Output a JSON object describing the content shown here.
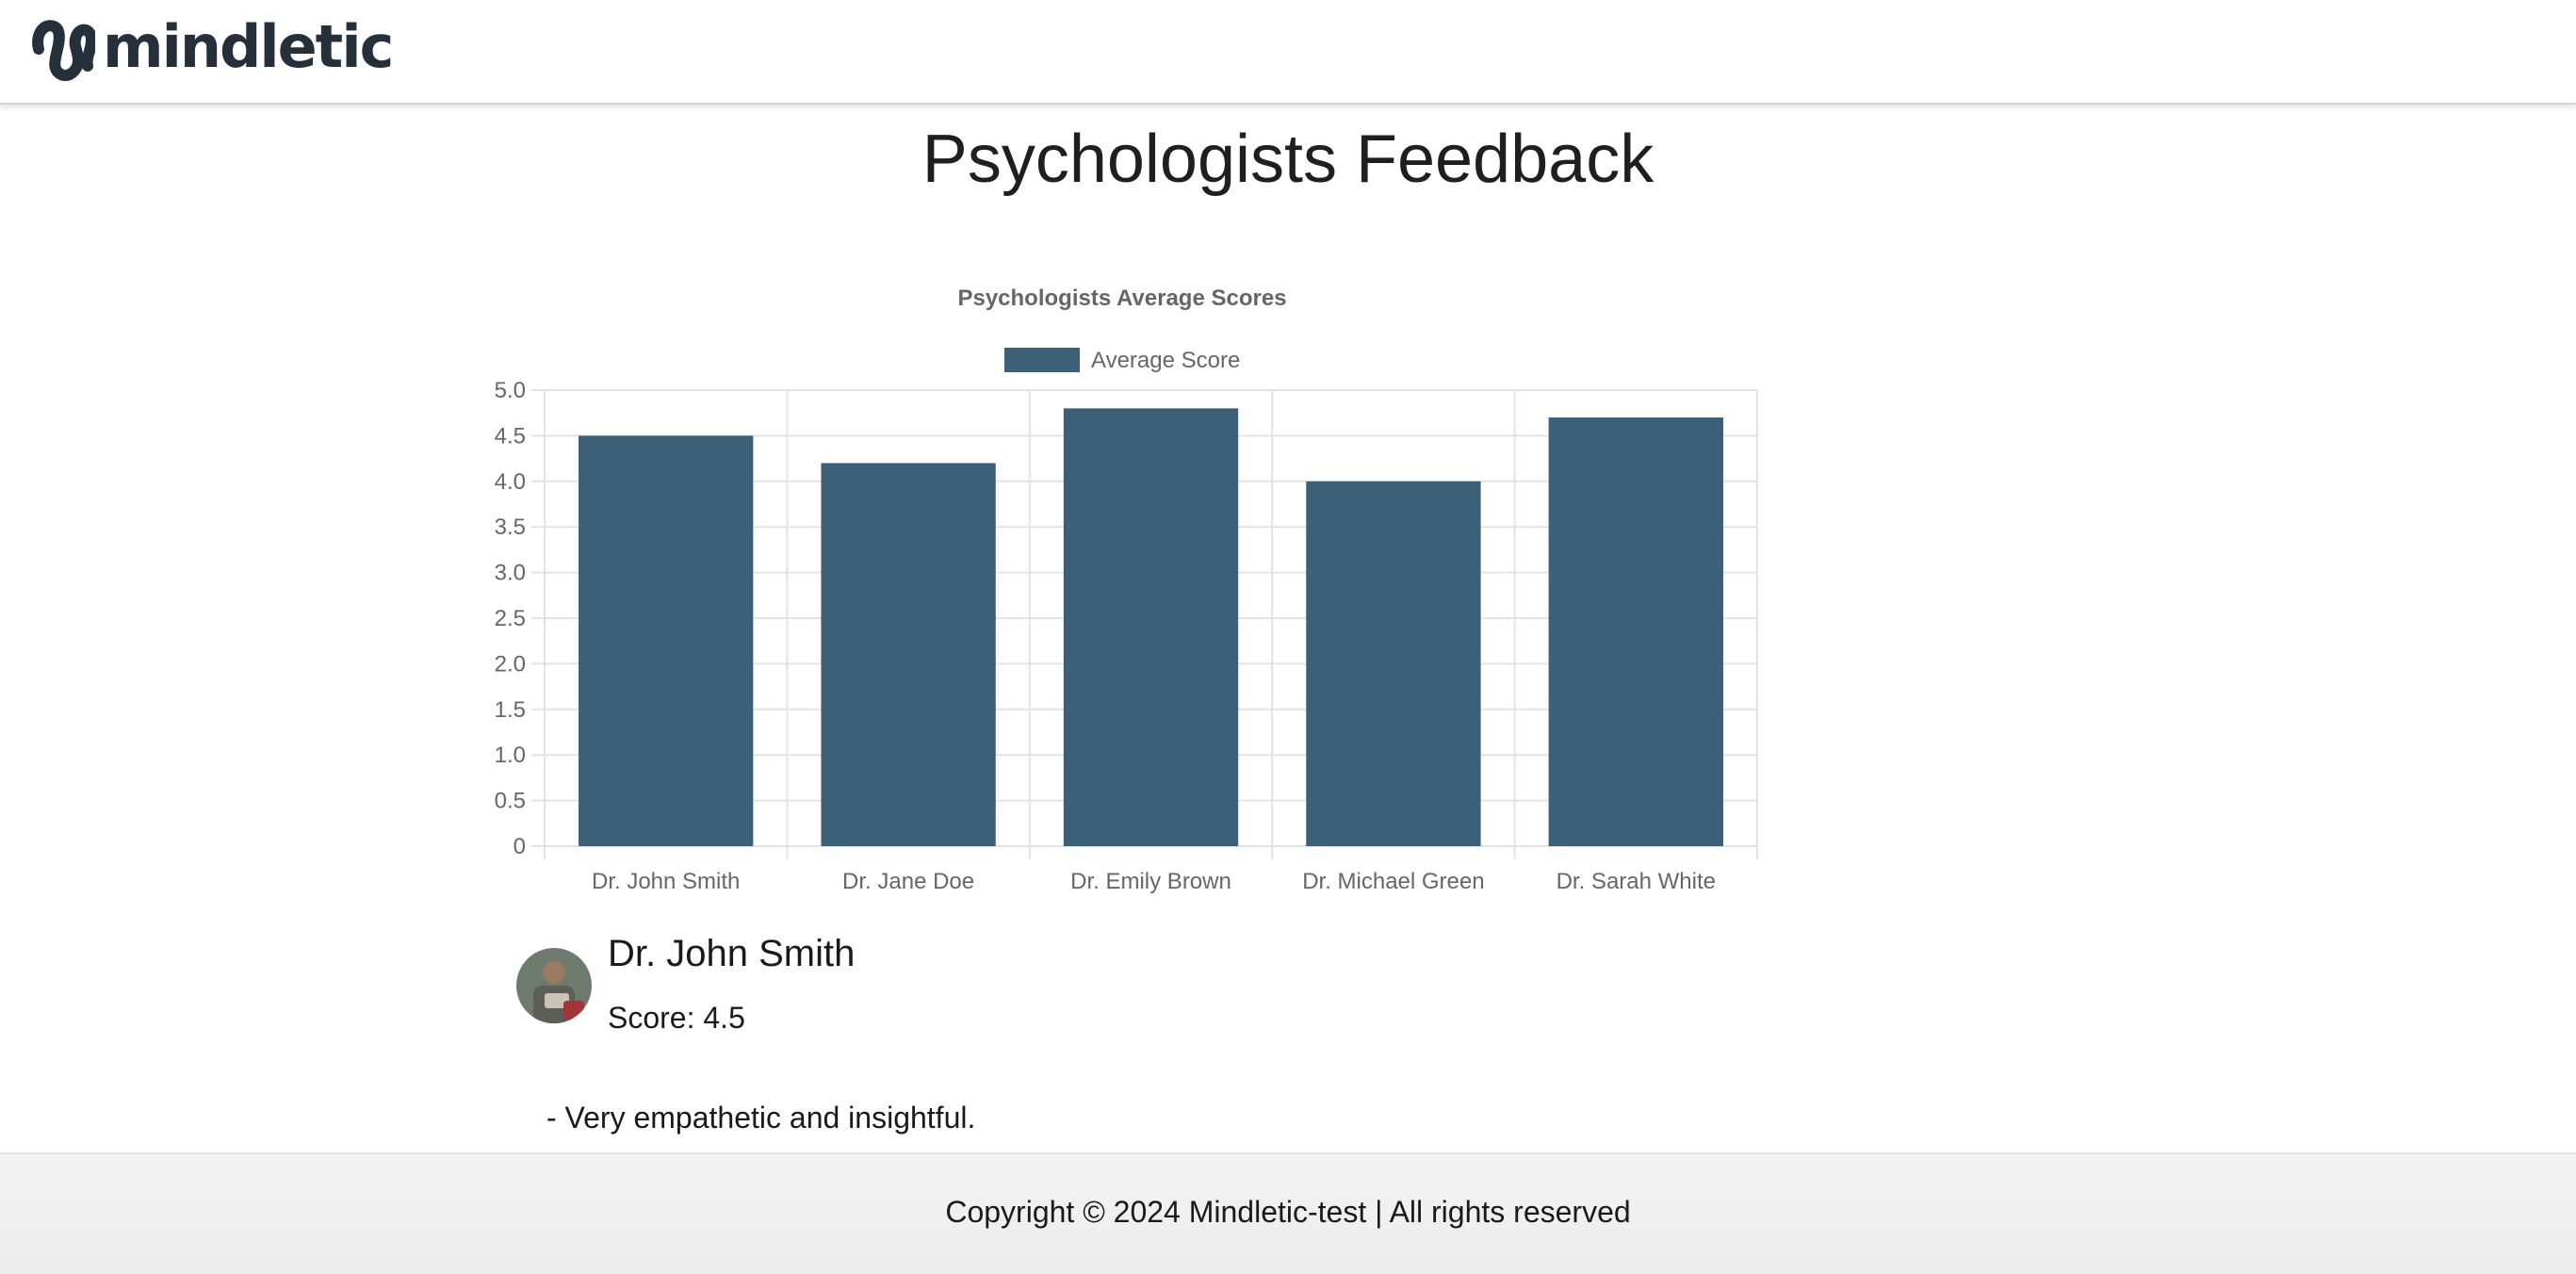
{
  "header": {
    "logo_text": "mindletic"
  },
  "page": {
    "title": "Psychologists Feedback"
  },
  "chart_data": {
    "type": "bar",
    "title": "Psychologists Average Scores",
    "categories": [
      "Dr. John Smith",
      "Dr. Jane Doe",
      "Dr. Emily Brown",
      "Dr. Michael Green",
      "Dr. Sarah White"
    ],
    "series": [
      {
        "name": "Average Score",
        "values": [
          4.5,
          4.2,
          4.8,
          4.0,
          4.7
        ],
        "color": "#3d6079"
      }
    ],
    "ylim": [
      0,
      5
    ],
    "yticks": [
      "0",
      "0.5",
      "1.0",
      "1.5",
      "2.0",
      "2.5",
      "3.0",
      "3.5",
      "4.0",
      "4.5",
      "5.0"
    ],
    "grid": true,
    "legend": "top-center"
  },
  "psychologist": {
    "name": "Dr. John Smith",
    "score": "Score: 4.5",
    "feedback": "- Very empathetic and insightful."
  },
  "footer": {
    "copyright": "Copyright © 2024 Mindletic-test | All rights reserved"
  },
  "colors": {
    "bar": "#3d6079",
    "text_dark": "#26303b"
  }
}
